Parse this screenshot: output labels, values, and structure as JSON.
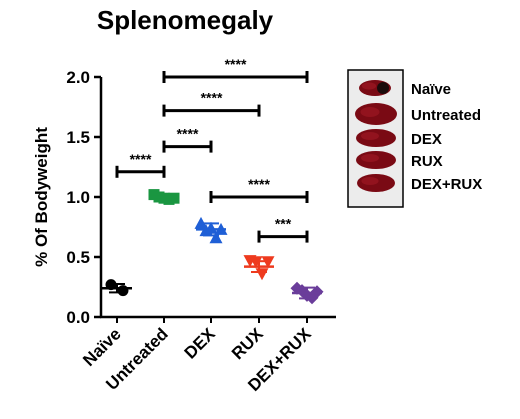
{
  "chart_data": {
    "type": "scatter",
    "title": "Splenomegaly",
    "xlabel": "",
    "ylabel": "% Of Bodyweight",
    "ylim": [
      0,
      2.0
    ],
    "yticks": [
      "0.0",
      "0.5",
      "1.0",
      "1.5",
      "2.0"
    ],
    "categories": [
      "Naïve",
      "Untreated",
      "DEX",
      "RUX",
      "DEX+RUX"
    ],
    "groups": [
      {
        "name": "Naïve",
        "color": "#000000",
        "marker": "circle",
        "mean": 0.24,
        "sd": 0.035,
        "points": [
          0.27,
          0.22
        ]
      },
      {
        "name": "Untreated",
        "color": "#1a9641",
        "marker": "square",
        "mean": 1.0,
        "sd": 0.02,
        "points": [
          1.02,
          1.0,
          0.99,
          0.98,
          0.99
        ]
      },
      {
        "name": "DEX",
        "color": "#1f5fd6",
        "marker": "triangle-up",
        "mean": 0.73,
        "sd": 0.05,
        "points": [
          0.78,
          0.72,
          0.74,
          0.66,
          0.73
        ]
      },
      {
        "name": "RUX",
        "color": "#ee3a1e",
        "marker": "triangle-down",
        "mean": 0.42,
        "sd": 0.045,
        "points": [
          0.47,
          0.46,
          0.36,
          0.46
        ]
      },
      {
        "name": "DEX+RUX",
        "color": "#6a3d9a",
        "marker": "diamond",
        "mean": 0.2,
        "sd": 0.045,
        "points": [
          0.24,
          0.22,
          0.18,
          0.16,
          0.21
        ]
      }
    ],
    "significance": [
      {
        "from": 0,
        "to": 1,
        "y": 1.21,
        "label": "****"
      },
      {
        "from": 1,
        "to": 2,
        "y": 1.42,
        "label": "****"
      },
      {
        "from": 1,
        "to": 3,
        "y": 1.72,
        "label": "****"
      },
      {
        "from": 1,
        "to": 4,
        "y": 2.0,
        "label": "****"
      },
      {
        "from": 2,
        "to": 4,
        "y": 1.0,
        "label": "****"
      },
      {
        "from": 3,
        "to": 4,
        "y": 0.67,
        "label": "***"
      }
    ],
    "inset": {
      "labels": [
        "Naïve",
        "Untreated",
        "DEX",
        "RUX",
        "DEX+RUX"
      ]
    }
  },
  "colors": {
    "axis": "#000000",
    "spleen_fill": "#7a0a14",
    "spleen_highlight": "#b01e2a",
    "inset_bg": "#ececec"
  }
}
